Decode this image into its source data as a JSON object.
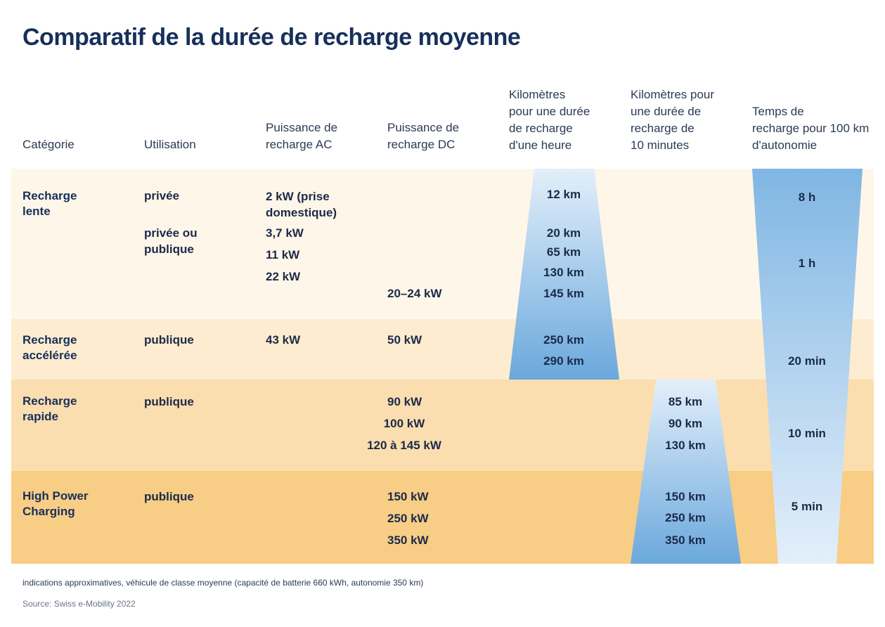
{
  "title": "Comparatif de la durée de recharge moyenne",
  "colors": {
    "title": "#17305a",
    "bar_blue": "#6aa8dc",
    "bar_light": "#e3effa"
  },
  "headers": {
    "categorie": "Catégorie",
    "utilisation": "Utilisation",
    "ac": "Puissance de\nrecharge AC",
    "dc": "Puissance de\nrecharge DC",
    "km_heure": "Kilomètres\npour une durée\nde recharge\nd'une heure",
    "km_10min": "Kilomètres pour\nune durée de\nrecharge de\n10 minutes",
    "temps": "Temps de\nrecharge pour 100 km\nd'autonomie"
  },
  "chart_data": {
    "type": "table",
    "title": "Comparatif de la durée de recharge moyenne",
    "rows": [
      {
        "category": "Recharge\nlente",
        "utilisation": [
          "privée",
          "privée ou\npublique"
        ],
        "ac": [
          "2 kW (prise\ndomestique)",
          "3,7 kW",
          "11 kW",
          "22 kW"
        ],
        "dc": [
          "20–24 kW"
        ],
        "km_heure": [
          "12 km",
          "20 km",
          "65 km",
          "130 km",
          "145 km"
        ],
        "km_10min": [],
        "temps": [
          "8 h",
          "1 h"
        ]
      },
      {
        "category": "Recharge\naccélérée",
        "utilisation": [
          "publique"
        ],
        "ac": [
          "43 kW"
        ],
        "dc": [
          "50 kW"
        ],
        "km_heure": [
          "250 km",
          "290 km"
        ],
        "km_10min": [],
        "temps": [
          "20 min"
        ]
      },
      {
        "category": "Recharge\nrapide",
        "utilisation": [
          "publique"
        ],
        "ac": [],
        "dc": [
          "90 kW",
          "100 kW",
          "120 à 145 kW"
        ],
        "km_heure": [],
        "km_10min": [
          "85 km",
          "90 km",
          "130 km"
        ],
        "temps": [
          "10 min"
        ]
      },
      {
        "category": "High Power\nCharging",
        "utilisation": [
          "publique"
        ],
        "ac": [],
        "dc": [
          "150 kW",
          "250 kW",
          "350 kW"
        ],
        "km_heure": [],
        "km_10min": [
          "150 km",
          "250 km",
          "350 km"
        ],
        "temps": [
          "5 min"
        ]
      }
    ]
  },
  "footnote": "indications approximatives, véhicule de classe moyenne (capacité de batterie 660 kWh, autonomie 350 km)",
  "source": "Source: Swiss e-Mobility 2022"
}
